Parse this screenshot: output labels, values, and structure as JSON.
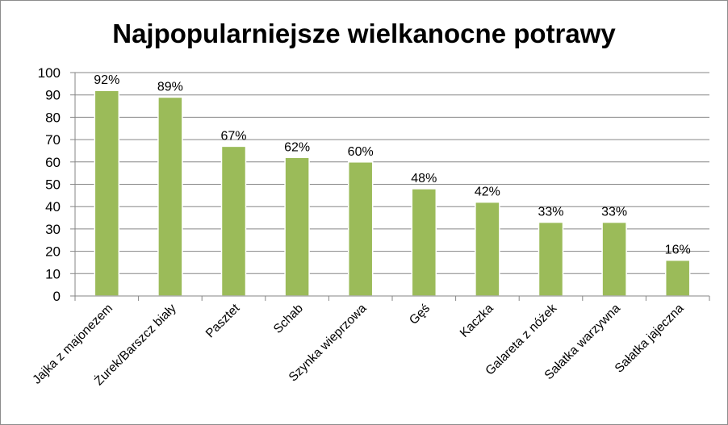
{
  "chart_data": {
    "type": "bar",
    "title": "Najpopularniejsze wielkanocne potrawy",
    "xlabel": "",
    "ylabel": "",
    "categories": [
      "Jajka z majonezem",
      "Żurek/Barszcz biały",
      "Pasztet",
      "Schab",
      "Szynka wieprzowa",
      "Gęś",
      "Kaczka",
      "Galareta z nóżek",
      "Sałatka warzywna",
      "Sałatka jajeczna"
    ],
    "values": [
      92,
      89,
      67,
      62,
      60,
      48,
      42,
      33,
      33,
      16
    ],
    "data_labels": [
      "92%",
      "89%",
      "67%",
      "62%",
      "60%",
      "48%",
      "42%",
      "33%",
      "33%",
      "16%"
    ],
    "ylim": [
      0,
      100
    ],
    "yticks": [
      0,
      10,
      20,
      30,
      40,
      50,
      60,
      70,
      80,
      90,
      100
    ],
    "grid": true,
    "legend": "none",
    "colors": {
      "bar": "#9bbb59",
      "bar_edge": "#ffffff",
      "grid": "#868686",
      "axis": "#868686"
    }
  }
}
